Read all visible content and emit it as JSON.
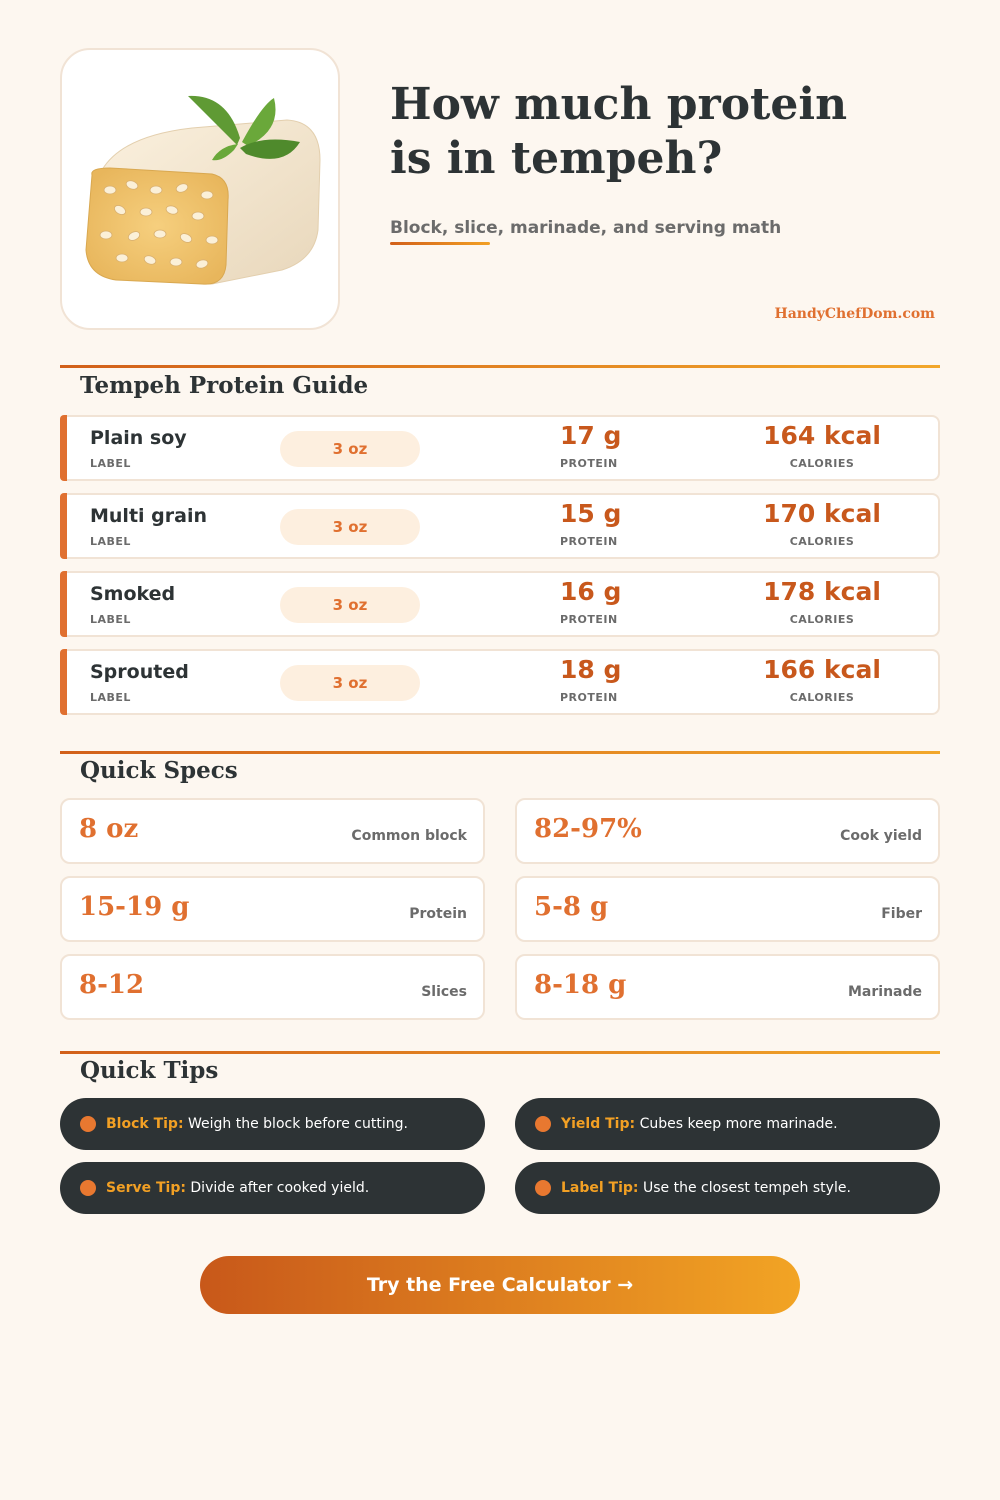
{
  "header": {
    "title_lines": [
      "How much protein",
      "is in tempeh?"
    ],
    "subtitle": "Block, slice, marinade, and serving math",
    "site": "HandyChefDom.com"
  },
  "guide": {
    "title": "Tempeh Protein Guide",
    "row_labels": {
      "name": "LABEL",
      "protein": "PROTEIN",
      "calories": "CALORIES"
    },
    "rows": [
      {
        "name": "Plain soy",
        "serving": "3 oz",
        "protein": "17 g",
        "calories": "164 kcal"
      },
      {
        "name": "Multi grain",
        "serving": "3 oz",
        "protein": "15 g",
        "calories": "170 kcal"
      },
      {
        "name": "Smoked",
        "serving": "3 oz",
        "protein": "16 g",
        "calories": "178 kcal"
      },
      {
        "name": "Sprouted",
        "serving": "3 oz",
        "protein": "18 g",
        "calories": "166 kcal"
      }
    ]
  },
  "specs": {
    "title": "Quick Specs",
    "items": [
      {
        "value": "8 oz",
        "label": "Common block"
      },
      {
        "value": "82-97%",
        "label": "Cook yield"
      },
      {
        "value": "15-19 g",
        "label": "Protein"
      },
      {
        "value": "5-8 g",
        "label": "Fiber"
      },
      {
        "value": "8-12",
        "label": "Slices"
      },
      {
        "value": "8-18 g",
        "label": "Marinade"
      }
    ]
  },
  "tips": {
    "title": "Quick Tips",
    "items": [
      {
        "label": "Block Tip:",
        "text": "Weigh the block before cutting."
      },
      {
        "label": "Yield Tip:",
        "text": "Cubes keep more marinade."
      },
      {
        "label": "Serve Tip:",
        "text": "Divide after cooked yield."
      },
      {
        "label": "Label Tip:",
        "text": "Use the closest tempeh style."
      }
    ]
  },
  "cta": "Try the Free Calculator →"
}
